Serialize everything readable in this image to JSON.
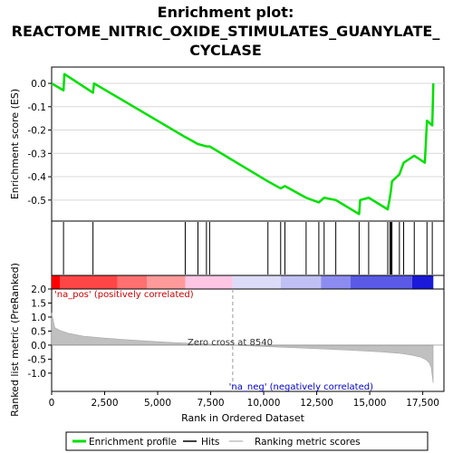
{
  "title_lines": [
    "Enrichment plot:",
    "REACTOME_NITRIC_OXIDE_STIMULATES_GUANYLATE_",
    "CYCLASE"
  ],
  "es_axis_label": "Enrichment score (ES)",
  "metric_axis_label": "Ranked list metric (PreRanked)",
  "x_axis_label": "Rank in Ordered Dataset",
  "pos_label": "'na_pos' (positively correlated)",
  "neg_label": "'na_neg' (negatively correlated)",
  "zero_cross_label": "Zero cross at 8540",
  "legend": {
    "enrichment_profile": "Enrichment profile",
    "hits": "Hits",
    "ranking_metric": "Ranking metric scores"
  },
  "colors": {
    "profile": "#00e000",
    "hits": "#000000",
    "metric_fill": "#c0c0c0",
    "pos_strong": "#ff0000",
    "neg_strong": "#0000ff",
    "label_pos": "#cc0000",
    "label_neg": "#0000cc"
  },
  "chart_data": {
    "type": "line",
    "x_range": [
      0,
      18500
    ],
    "x_ticks": [
      0,
      2500,
      5000,
      7500,
      10000,
      12500,
      15000,
      17500
    ],
    "x_tick_labels": [
      "0",
      "2,500",
      "5,000",
      "7,500",
      "10,000",
      "12,500",
      "15,000",
      "17,500"
    ],
    "es_range": [
      -0.59,
      0.07
    ],
    "es_ticks": [
      0.0,
      -0.1,
      -0.2,
      -0.3,
      -0.4,
      -0.5
    ],
    "es_tick_labels": [
      "0.0",
      "-0.1",
      "-0.2",
      "-0.3",
      "-0.4",
      "-0.5"
    ],
    "metric_range": [
      -1.65,
      2.0
    ],
    "metric_ticks": [
      2.0,
      1.5,
      1.0,
      0.5,
      0.0,
      -0.5,
      -1.0
    ],
    "metric_tick_labels": [
      "2.0",
      "1.5",
      "1.0",
      "0.5",
      "0.0",
      "-0.5",
      "-1.0"
    ],
    "zero_cross": 8540,
    "enrichment_profile": {
      "x": [
        0,
        560,
        600,
        1950,
        2000,
        6300,
        6900,
        7300,
        7450,
        10200,
        10800,
        11000,
        12000,
        12600,
        12850,
        13400,
        14500,
        14550,
        14950,
        15850,
        15950,
        16000,
        16050,
        16400,
        16600,
        17100,
        17600,
        17700,
        17950,
        18000
      ],
      "y": [
        0.0,
        -0.03,
        0.04,
        -0.04,
        0.0,
        -0.23,
        -0.26,
        -0.27,
        -0.27,
        -0.42,
        -0.45,
        -0.44,
        -0.49,
        -0.51,
        -0.49,
        -0.5,
        -0.56,
        -0.5,
        -0.49,
        -0.54,
        -0.49,
        -0.46,
        -0.42,
        -0.39,
        -0.34,
        -0.31,
        -0.34,
        -0.16,
        -0.18,
        0.0
      ]
    },
    "hits": [
      560,
      1950,
      6300,
      6900,
      7300,
      7450,
      10200,
      10800,
      11000,
      12000,
      12600,
      12850,
      13400,
      14500,
      14950,
      15850,
      15950,
      16000,
      16050,
      16400,
      16600,
      17100,
      17700,
      17950
    ],
    "ranking_metric": {
      "x": [
        0,
        150,
        400,
        800,
        1500,
        2500,
        4000,
        5500,
        7000,
        8540,
        10000,
        12000,
        14000,
        15500,
        16500,
        17000,
        17400,
        17650,
        17800,
        17900,
        17950,
        17990
      ],
      "y": [
        1.15,
        0.62,
        0.52,
        0.42,
        0.32,
        0.25,
        0.17,
        0.1,
        0.05,
        0.0,
        -0.05,
        -0.11,
        -0.18,
        -0.24,
        -0.3,
        -0.36,
        -0.43,
        -0.52,
        -0.62,
        -0.8,
        -1.1,
        -1.35
      ]
    },
    "color_bar_segments": [
      {
        "to": 400,
        "color": "#ff0000"
      },
      {
        "to": 3100,
        "color": "#ff4646"
      },
      {
        "to": 4500,
        "color": "#ff7070"
      },
      {
        "to": 6300,
        "color": "#ff9a9a"
      },
      {
        "to": 8540,
        "color": "#ffc6e4"
      },
      {
        "to": 10800,
        "color": "#dcdcf8"
      },
      {
        "to": 12700,
        "color": "#c0c0f4"
      },
      {
        "to": 14100,
        "color": "#8c8cf0"
      },
      {
        "to": 17000,
        "color": "#5a5ae6"
      },
      {
        "to": 18000,
        "color": "#1a1ad8"
      }
    ]
  }
}
